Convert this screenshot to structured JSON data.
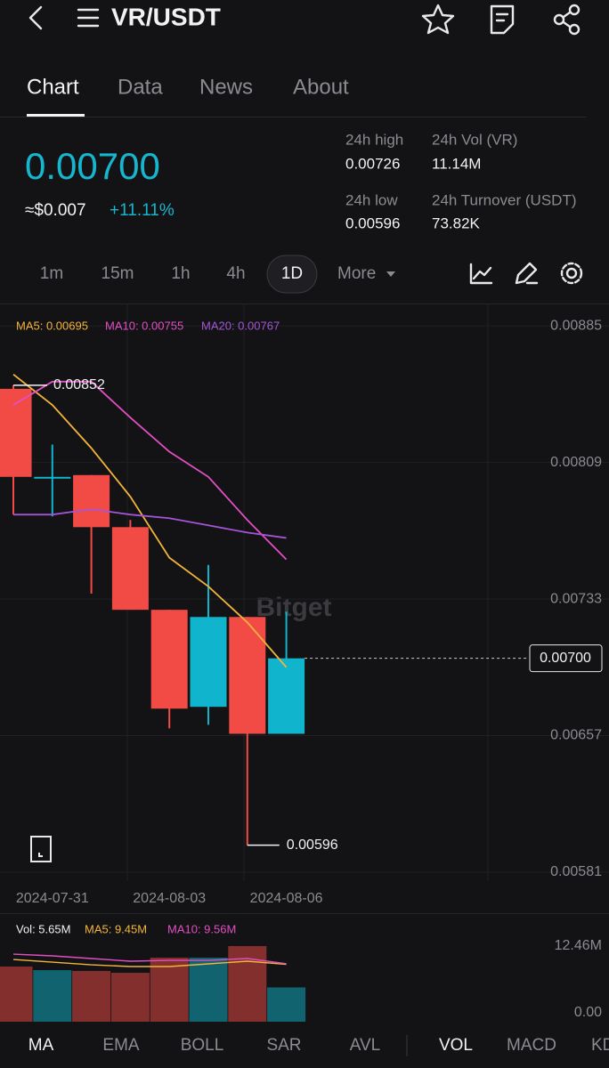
{
  "header": {
    "title": "VR/USDT"
  },
  "tabs": [
    "Chart",
    "Data",
    "News",
    "About"
  ],
  "ticker": {
    "price": "0.00700",
    "usd": "≈$0.007",
    "change": "+11.11%"
  },
  "stats": [
    {
      "label": "24h high",
      "value": "0.00726"
    },
    {
      "label": "24h Vol (VR)",
      "value": "11.14M"
    },
    {
      "label": "24h low",
      "value": "0.00596"
    },
    {
      "label": "24h Turnover (USDT)",
      "value": "73.82K"
    }
  ],
  "intervals": [
    "1m",
    "15m",
    "1h",
    "4h",
    "1D",
    "More"
  ],
  "watermark": "Bitget",
  "chart_data": {
    "type": "candlestick",
    "categories": [
      null,
      "2024-07-31",
      null,
      null,
      "2024-08-03",
      null,
      null,
      "2024-08-06"
    ],
    "open": [
      0.0085,
      0.00801,
      0.00802,
      0.00773,
      0.00727,
      0.00673,
      0.00723,
      0.00658
    ],
    "high": [
      0.00852,
      0.00819,
      0.00802,
      0.00777,
      0.00727,
      0.00752,
      0.00723,
      0.00726
    ],
    "low": [
      0.0078,
      0.00779,
      0.00736,
      0.00727,
      0.00661,
      0.00663,
      0.00596,
      0.00658
    ],
    "close": [
      0.00801,
      0.00801,
      0.00773,
      0.00727,
      0.00672,
      0.00723,
      0.00658,
      0.007
    ],
    "up_color": "#10b4cc",
    "down_color": "#f24b45",
    "ylim": [
      0.00576,
      0.00897
    ],
    "yticks": [
      0.00885,
      0.00809,
      0.00733,
      0.00657,
      0.00581
    ],
    "grid": true,
    "legend": [
      "MA5: 0.00695",
      "MA10: 0.00755",
      "MA20: 0.00767"
    ],
    "series": [
      {
        "name": "MA5",
        "color": "#f3b43b",
        "values": [
          0.00858,
          0.00841,
          0.00817,
          0.0079,
          0.00756,
          0.0074,
          0.0072,
          0.00695
        ]
      },
      {
        "name": "MA10",
        "color": "#e24fc3",
        "values": [
          0.00841,
          0.00854,
          0.00854,
          0.00834,
          0.00815,
          0.00801,
          0.00777,
          0.00755
        ]
      },
      {
        "name": "MA20",
        "color": "#a455d6",
        "values": [
          0.0078,
          0.0078,
          0.00783,
          0.0078,
          0.00778,
          0.00774,
          0.0077,
          0.00767
        ]
      }
    ],
    "annotations": {
      "high": 0.00852,
      "low": 0.00596,
      "current": {
        "value": 0.007,
        "label": "0.00700"
      }
    },
    "volume": {
      "legend": [
        "Vol: 5.65M",
        "MA5: 9.45M",
        "MA10: 9.56M"
      ],
      "values": [
        9090000,
        8500000,
        8360000,
        8060000,
        10550000,
        10550000,
        12460000,
        5650000
      ],
      "ylim": [
        0,
        17300000
      ],
      "yticks": [
        {
          "value": 12460000,
          "label": "12.46M"
        },
        {
          "value": 0,
          "label": "0.00"
        }
      ],
      "series": [
        {
          "name": "MA5",
          "color": "#f3b43b",
          "values": [
            10260000,
            9820000,
            9380000,
            9090000,
            9090000,
            9530000,
            9970000,
            9450000
          ]
        },
        {
          "name": "MA10",
          "color": "#e24fc3",
          "values": [
            11140000,
            10850000,
            10410000,
            9970000,
            10110000,
            10110000,
            10410000,
            9560000
          ]
        }
      ]
    }
  },
  "indicators": [
    "MA",
    "EMA",
    "BOLL",
    "SAR",
    "AVL",
    "VOL",
    "MACD",
    "KD"
  ]
}
